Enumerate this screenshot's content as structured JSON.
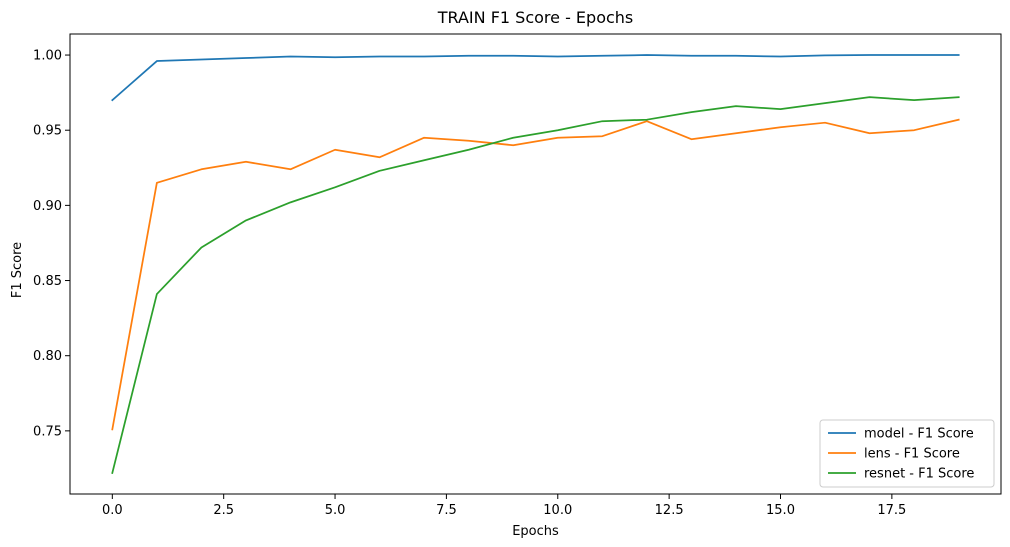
{
  "chart_data": {
    "type": "line",
    "title": "TRAIN F1 Score - Epochs",
    "xlabel": "Epochs",
    "ylabel": "F1 Score",
    "xlim": [
      -0.95,
      19.95
    ],
    "ylim": [
      0.708,
      1.014
    ],
    "xticks": [
      0.0,
      2.5,
      5.0,
      7.5,
      10.0,
      12.5,
      15.0,
      17.5
    ],
    "xtick_labels": [
      "0.0",
      "2.5",
      "5.0",
      "7.5",
      "10.0",
      "12.5",
      "15.0",
      "17.5"
    ],
    "yticks": [
      0.75,
      0.8,
      0.85,
      0.9,
      0.95,
      1.0
    ],
    "ytick_labels": [
      "0.75",
      "0.80",
      "0.85",
      "0.90",
      "0.95",
      "1.00"
    ],
    "grid": false,
    "legend_position": "lower-right",
    "x": [
      0,
      1,
      2,
      3,
      4,
      5,
      6,
      7,
      8,
      9,
      10,
      11,
      12,
      13,
      14,
      15,
      16,
      17,
      18,
      19
    ],
    "series": [
      {
        "name": "model - F1 Score",
        "color": "#1f77b4",
        "values": [
          0.97,
          0.996,
          0.997,
          0.998,
          0.999,
          0.9985,
          0.999,
          0.999,
          0.9995,
          0.9995,
          0.999,
          0.9995,
          1.0,
          0.9995,
          0.9995,
          0.999,
          0.9998,
          1.0,
          1.0,
          1.0
        ]
      },
      {
        "name": "lens - F1 Score",
        "color": "#ff7f0e",
        "values": [
          0.751,
          0.915,
          0.924,
          0.929,
          0.924,
          0.937,
          0.932,
          0.945,
          0.943,
          0.94,
          0.945,
          0.946,
          0.956,
          0.944,
          0.948,
          0.952,
          0.955,
          0.948,
          0.95,
          0.957
        ]
      },
      {
        "name": "resnet - F1 Score",
        "color": "#2ca02c",
        "values": [
          0.722,
          0.841,
          0.872,
          0.89,
          0.902,
          0.912,
          0.923,
          0.93,
          0.937,
          0.945,
          0.95,
          0.956,
          0.957,
          0.962,
          0.966,
          0.964,
          0.968,
          0.972,
          0.97,
          0.972
        ]
      }
    ]
  }
}
